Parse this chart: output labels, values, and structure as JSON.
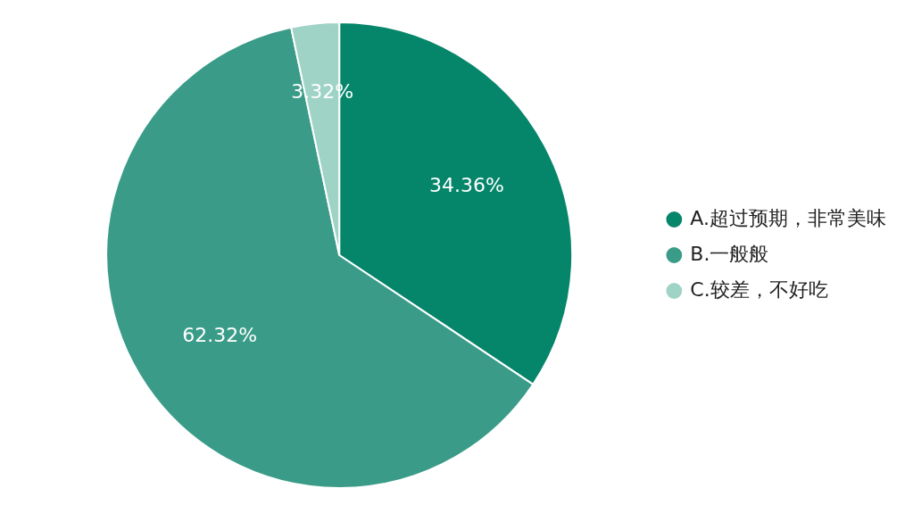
{
  "chart_data": {
    "type": "pie",
    "categories": [
      "A.超过预期，非常美味",
      "B.一般般",
      "C.较差，不好吃"
    ],
    "values": [
      34.36,
      62.32,
      3.32
    ],
    "colors": [
      "#05856a",
      "#3a9c88",
      "#9fd3c5"
    ],
    "value_labels": [
      "34.36%",
      "62.32%",
      "3.32%"
    ],
    "legend": "right"
  }
}
